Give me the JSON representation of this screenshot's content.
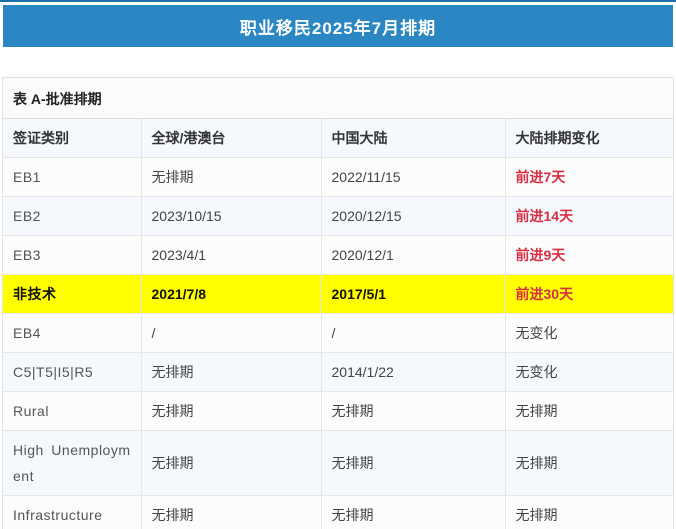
{
  "page": {
    "title": "职业移民2025年7月排期",
    "section_caption": "表 A-批准排期"
  },
  "colors": {
    "accent_blue": "#2b87c3",
    "top_line_blue": "#1a6fa8",
    "highlight_yellow": "#ffff00",
    "advance_red": "#d82e44",
    "stripe_blue": "#f5f9fd"
  },
  "table": {
    "columns": [
      "签证类别",
      "全球/港澳台",
      "中国大陆",
      "大陆排期变化"
    ],
    "rows": [
      {
        "category": "EB1",
        "global": "无排期",
        "china": "2022/11/15",
        "change": "前进7天",
        "change_type": "advance",
        "highlight": false
      },
      {
        "category": "EB2",
        "global": "2023/10/15",
        "china": "2020/12/15",
        "change": "前进14天",
        "change_type": "advance",
        "highlight": false
      },
      {
        "category": "EB3",
        "global": "2023/4/1",
        "china": "2020/12/1",
        "change": "前进9天",
        "change_type": "advance",
        "highlight": false
      },
      {
        "category": "非技术",
        "global": "2021/7/8",
        "china": "2017/5/1",
        "change": "前进30天",
        "change_type": "advance",
        "highlight": true
      },
      {
        "category": "EB4",
        "global": "/",
        "china": "/",
        "change": "无变化",
        "change_type": "none",
        "highlight": false
      },
      {
        "category": "C5|T5|I5|R5",
        "global": "无排期",
        "china": "2014/1/22",
        "change": "无变化",
        "change_type": "none",
        "highlight": false
      },
      {
        "category": "Rural",
        "global": "无排期",
        "china": "无排期",
        "change": "无排期",
        "change_type": "none",
        "highlight": false
      },
      {
        "category": "High Unemployment",
        "global": "无排期",
        "china": "无排期",
        "change": "无排期",
        "change_type": "none",
        "highlight": false
      },
      {
        "category": "Infrastructure",
        "global": "无排期",
        "china": "无排期",
        "change": "无排期",
        "change_type": "none",
        "highlight": false
      }
    ]
  }
}
